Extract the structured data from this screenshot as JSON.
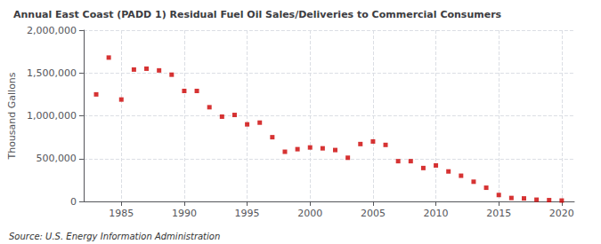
{
  "chart_data": {
    "type": "scatter",
    "title": "Annual East Coast (PADD 1) Residual Fuel Oil Sales/Deliveries to Commercial Consumers",
    "ylabel": "Thousand Gallons",
    "annotation": "Source: U.S. Energy Information Administration",
    "color": "#cc0000",
    "marker": "square",
    "x": [
      1983,
      1984,
      1985,
      1986,
      1987,
      1988,
      1989,
      1990,
      1991,
      1992,
      1993,
      1994,
      1995,
      1996,
      1997,
      1998,
      1999,
      2000,
      2001,
      2002,
      2003,
      2004,
      2005,
      2006,
      2007,
      2008,
      2009,
      2010,
      2011,
      2012,
      2013,
      2014,
      2015,
      2016,
      2017,
      2018,
      2019,
      2020
    ],
    "values": [
      1250000,
      1680000,
      1190000,
      1540000,
      1550000,
      1530000,
      1480000,
      1290000,
      1290000,
      1100000,
      990000,
      1010000,
      900000,
      920000,
      750000,
      580000,
      610000,
      630000,
      620000,
      600000,
      510000,
      670000,
      700000,
      660000,
      470000,
      470000,
      390000,
      420000,
      350000,
      300000,
      230000,
      160000,
      75000,
      40000,
      35000,
      20000,
      15000,
      10000
    ],
    "xlim": [
      1982,
      2021
    ],
    "xticks": [
      1985,
      1990,
      1995,
      2000,
      2005,
      2010,
      2015,
      2020
    ],
    "ylim": [
      0,
      2000000
    ],
    "yticks": [
      0,
      {
        "value": 500000,
        "label": "500,000"
      },
      {
        "value": 1000000,
        "label": "1,000,000"
      },
      {
        "value": 1500000,
        "label": "1,500,000"
      },
      {
        "value": 2000000,
        "label": "2,000,000"
      }
    ],
    "grid": true
  }
}
